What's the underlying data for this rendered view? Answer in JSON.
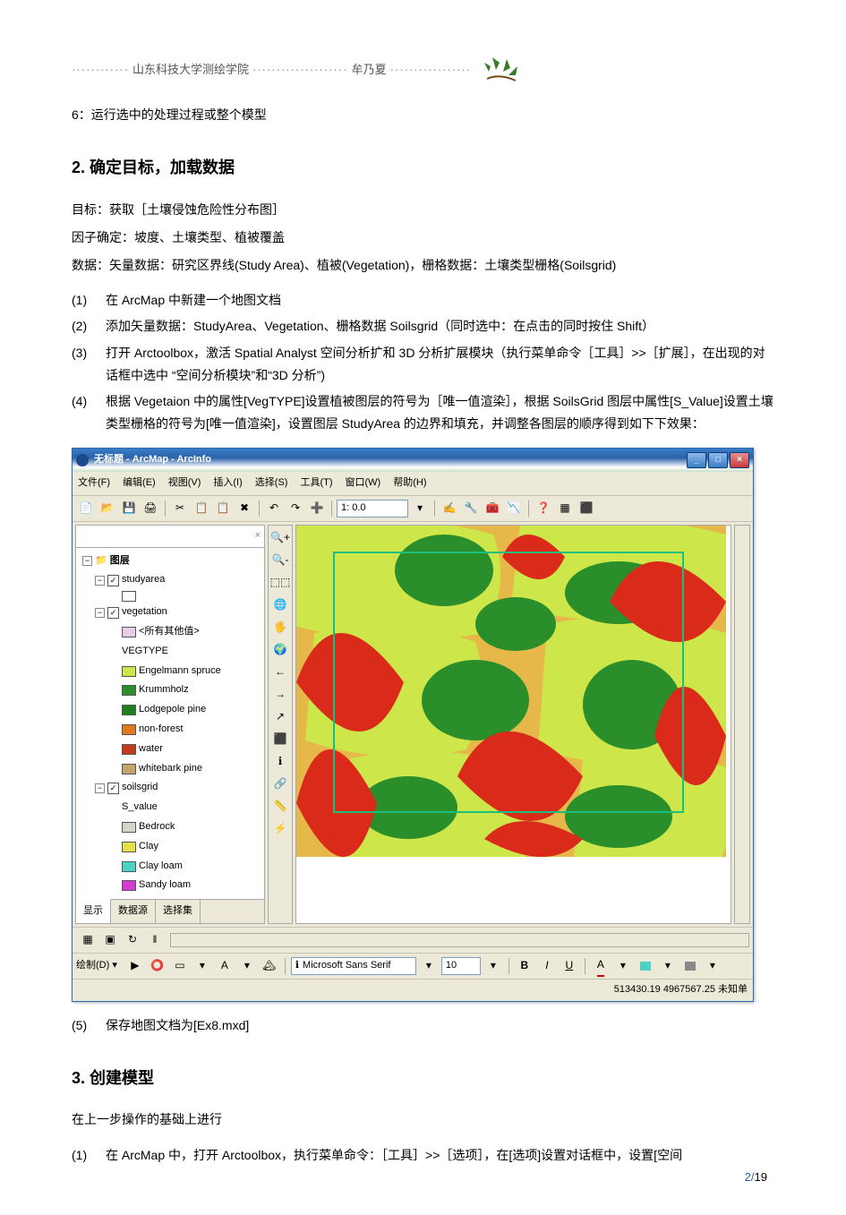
{
  "header": {
    "left": "山东科技大学测绘学院",
    "right": "牟乃夏"
  },
  "intro_line": "6：运行选中的处理过程或整个模型",
  "section2": {
    "title": "2. 确定目标，加载数据",
    "p1": "目标：获取［土壤侵蚀危险性分布图］",
    "p2": "因子确定：坡度、土壤类型、植被覆盖",
    "p3": "数据：矢量数据：研究区界线(Study Area)、植被(Vegetation)，栅格数据：土壤类型栅格(Soilsgrid)",
    "items": [
      {
        "n": "(1)",
        "t": "在 ArcMap 中新建一个地图文档"
      },
      {
        "n": "(2)",
        "t": "添加矢量数据：StudyArea、Vegetation、栅格数据 Soilsgrid（同时选中：在点击的同时按住 Shift）"
      },
      {
        "n": "(3)",
        "t": "打开 Arctoolbox，激活 Spatial Analyst 空间分析扩和 3D 分析扩展模块（执行菜单命令［工具］>>［扩展］，在出现的对话框中选中 “空间分析模块”和“3D 分析”)"
      },
      {
        "n": "(4)",
        "t": "根据 Vegetaion 中的属性[VegTYPE]设置植被图层的符号为［唯一值渲染］，根据 SoilsGrid 图层中属性[S_Value]设置土壤类型栅格的符号为[唯一值渲染]，设置图层 StudyArea 的边界和填充，并调整各图层的顺序得到如下下效果："
      }
    ],
    "item5": {
      "n": "(5)",
      "t": "保存地图文档为[Ex8.mxd]"
    }
  },
  "section3": {
    "title": "3. 创建模型",
    "p1": "在上一步操作的基础上进行",
    "items": [
      {
        "n": "(1)",
        "t": "在 ArcMap 中，打开 Arctoolbox，执行菜单命令：［工具］>>［选项］，在[选项]设置对话框中，设置[空间"
      }
    ]
  },
  "arcmap": {
    "title": "无标题 - ArcMap - ArcInfo",
    "menus": [
      "文件(F)",
      "编辑(E)",
      "视图(V)",
      "插入(I)",
      "选择(S)",
      "工具(T)",
      "窗口(W)",
      "帮助(H)"
    ],
    "toolbar_icons": [
      "📄",
      "📂",
      "💾",
      "🖨",
      "✂",
      "📋",
      "📋",
      "✖",
      "↶",
      "↷",
      "➕",
      "▾",
      "1:",
      "0.0",
      "▾",
      "✍",
      "🔧",
      "🧰",
      "📉",
      "❓",
      "▦",
      "⬛"
    ],
    "scale": "0.0",
    "toc": {
      "root": "图层",
      "layers": [
        {
          "name": "studyarea",
          "type": "layer",
          "checked": true,
          "children": [
            {
              "swatch": "#ffffff",
              "label": ""
            }
          ]
        },
        {
          "name": "vegetation",
          "type": "layer",
          "checked": true,
          "field": "VEGTYPE",
          "children": [
            {
              "swatch": "#e6cfe6",
              "label": "<所有其他值>"
            },
            {
              "swatch": null,
              "label": "VEGTYPE",
              "heading": true
            },
            {
              "swatch": "#cde64a",
              "label": "Engelmann spruce"
            },
            {
              "swatch": "#2a8f2a",
              "label": "Krummholz"
            },
            {
              "swatch": "#1f7f1f",
              "label": "Lodgepole pine"
            },
            {
              "swatch": "#e07a1a",
              "label": "non-forest"
            },
            {
              "swatch": "#c43a1a",
              "label": "water"
            },
            {
              "swatch": "#c4a36a",
              "label": "whitebark pine"
            }
          ]
        },
        {
          "name": "soilsgrid",
          "type": "layer",
          "checked": true,
          "field": "S_value",
          "children": [
            {
              "swatch": null,
              "label": "S_value",
              "heading": true
            },
            {
              "swatch": "#d8d4c8",
              "label": "Bedrock"
            },
            {
              "swatch": "#e6e04a",
              "label": "Clay"
            },
            {
              "swatch": "#4ad4c4",
              "label": "Clay loam"
            },
            {
              "swatch": "#d43ad4",
              "label": "Sandy loam"
            }
          ]
        }
      ],
      "tabs": [
        "显示",
        "数据源",
        "选择集"
      ]
    },
    "map_tools": [
      "🔍+",
      "🔍-",
      "⬚⬚",
      "🌐",
      "🖐",
      "🌍",
      "←",
      "→",
      "↗",
      "⬛",
      "ℹ",
      "🔗",
      "📏",
      "⚡"
    ],
    "map_colors": {
      "red": "#d92a1a",
      "green": "#2a8f2a",
      "lime": "#cde64a",
      "orange": "#e6b84a",
      "yellow": "#e6e04a",
      "border": "#1abf7f",
      "bg": "#ffffff"
    },
    "drawbar": {
      "label": "绘制(D)",
      "font": "Microsoft Sans Serif",
      "size": "10",
      "icons": [
        "▶",
        "⭕",
        "▭",
        "▾",
        "A",
        "▾",
        "🏔",
        "ℹ",
        "B",
        "I",
        "U",
        "A▾",
        "🖌▾",
        "📐▾",
        "▾"
      ]
    },
    "status": "513430.19  4967567.25 未知单"
  },
  "page_num": {
    "cur": "2",
    "total": "19"
  }
}
